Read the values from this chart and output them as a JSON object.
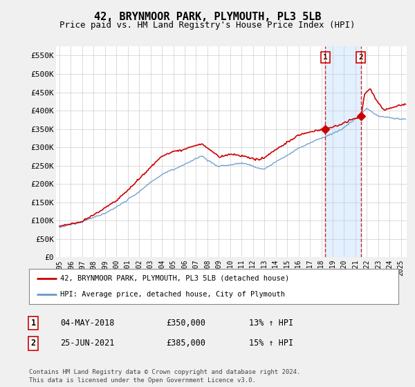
{
  "title": "42, BRYNMOOR PARK, PLYMOUTH, PL3 5LB",
  "subtitle": "Price paid vs. HM Land Registry's House Price Index (HPI)",
  "ylabel_ticks": [
    "£0",
    "£50K",
    "£100K",
    "£150K",
    "£200K",
    "£250K",
    "£300K",
    "£350K",
    "£400K",
    "£450K",
    "£500K",
    "£550K"
  ],
  "ytick_vals": [
    0,
    50000,
    100000,
    150000,
    200000,
    250000,
    300000,
    350000,
    400000,
    450000,
    500000,
    550000
  ],
  "ylim": [
    0,
    575000
  ],
  "sale1_x": 2018.34,
  "sale1_y": 350000,
  "sale2_x": 2021.48,
  "sale2_y": 385000,
  "legend_label_red": "42, BRYNMOOR PARK, PLYMOUTH, PL3 5LB (detached house)",
  "legend_label_blue": "HPI: Average price, detached house, City of Plymouth",
  "table_row1": [
    "1",
    "04-MAY-2018",
    "£350,000",
    "13% ↑ HPI"
  ],
  "table_row2": [
    "2",
    "25-JUN-2021",
    "£385,000",
    "15% ↑ HPI"
  ],
  "footer": "Contains HM Land Registry data © Crown copyright and database right 2024.\nThis data is licensed under the Open Government Licence v3.0.",
  "bg_color": "#f0f0f0",
  "plot_bg_color": "#ffffff",
  "red_color": "#cc0000",
  "blue_color": "#6699cc",
  "shaded_color": "#ddeeff",
  "grid_color": "#cccccc",
  "dashed_line_color": "#cc0000",
  "xlim_left": 1994.7,
  "xlim_right": 2025.5
}
